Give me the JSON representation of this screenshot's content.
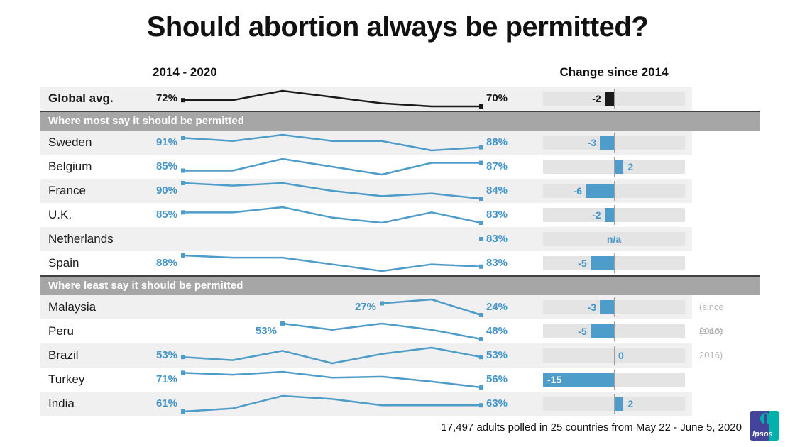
{
  "title": "Should abortion always be permitted?",
  "column_headers": {
    "trend": "2014 - 2020",
    "change": "Change since 2014"
  },
  "footer": {
    "note": "17,497 adults polled in 25 countries from May 22 - June 5, 2020",
    "logo_text": "Ipsos"
  },
  "colors": {
    "accent_blue": "#4e9cc9",
    "value_blue": "#4696c8",
    "black": "#1a1a1a",
    "track_gray": "#e4e4e4",
    "section_gray": "#a6a6a6",
    "since_gray": "#b5b5b5",
    "logo_indigo": "#45449b",
    "logo_teal": "#00b2a9"
  },
  "chart_data": {
    "type": "line",
    "years": [
      2014,
      2015,
      2016,
      2017,
      2018,
      2019,
      2020
    ],
    "change_axis": {
      "center": 0,
      "points_per_halftrack": 15
    },
    "rows": [
      {
        "type": "data",
        "label": "Global avg.",
        "start_label": "72%",
        "end_label": "70%",
        "values": [
          72,
          72,
          75,
          73,
          71,
          70,
          70
        ],
        "change": -2,
        "change_label": "-2",
        "emphasis": true,
        "striped": true
      },
      {
        "type": "section",
        "label": "Where most say it should be permitted"
      },
      {
        "type": "data",
        "label": "Sweden",
        "start_label": "91%",
        "end_label": "88%",
        "values": [
          91,
          90,
          92,
          90,
          90,
          87,
          88
        ],
        "change": -3,
        "change_label": "-3",
        "striped": true
      },
      {
        "type": "data",
        "label": "Belgium",
        "start_label": "85%",
        "end_label": "87%",
        "values": [
          85,
          85,
          88,
          86,
          84,
          87,
          87
        ],
        "change": 2,
        "change_label": "2"
      },
      {
        "type": "data",
        "label": "France",
        "start_label": "90%",
        "end_label": "84%",
        "values": [
          90,
          89,
          90,
          87,
          85,
          86,
          84
        ],
        "change": -6,
        "change_label": "-6",
        "striped": true
      },
      {
        "type": "data",
        "label": "U.K.",
        "start_label": "85%",
        "end_label": "83%",
        "values": [
          85,
          85,
          86,
          84,
          83,
          85,
          83
        ],
        "change": -2,
        "change_label": "-2"
      },
      {
        "type": "data",
        "label": "Netherlands",
        "start_label": "",
        "end_label": "83%",
        "values": [
          83
        ],
        "change": null,
        "change_label": "n/a",
        "striped": true
      },
      {
        "type": "data",
        "label": "Spain",
        "start_label": "88%",
        "end_label": "83%",
        "values": [
          88,
          87,
          87,
          84,
          81,
          84,
          83
        ],
        "change": -5,
        "change_label": "-5"
      },
      {
        "type": "section",
        "label": "Where least say it should be permitted"
      },
      {
        "type": "data",
        "label": "Malaysia",
        "start_label": "27%",
        "end_label": "24%",
        "values": [
          27,
          28,
          24
        ],
        "change": -3,
        "change_label": "-3",
        "since": "(since 2018)",
        "striped": true
      },
      {
        "type": "data",
        "label": "Peru",
        "start_label": "53%",
        "end_label": "48%",
        "values": [
          53,
          51,
          53,
          51,
          48
        ],
        "change": -5,
        "change_label": "-5",
        "since": "(since 2016)"
      },
      {
        "type": "data",
        "label": "Brazil",
        "start_label": "53%",
        "end_label": "53%",
        "values": [
          53,
          52,
          55,
          51,
          54,
          56,
          53
        ],
        "change": 0,
        "change_label": "0",
        "striped": true
      },
      {
        "type": "data",
        "label": "Turkey",
        "start_label": "71%",
        "end_label": "56%",
        "values": [
          71,
          69,
          72,
          66,
          67,
          62,
          56
        ],
        "change": -15,
        "change_label": "-15",
        "label_inside": true
      },
      {
        "type": "data",
        "label": "India",
        "start_label": "61%",
        "end_label": "63%",
        "values": [
          61,
          62,
          66,
          65,
          63,
          63,
          63
        ],
        "change": 2,
        "change_label": "2",
        "striped": true
      }
    ]
  }
}
